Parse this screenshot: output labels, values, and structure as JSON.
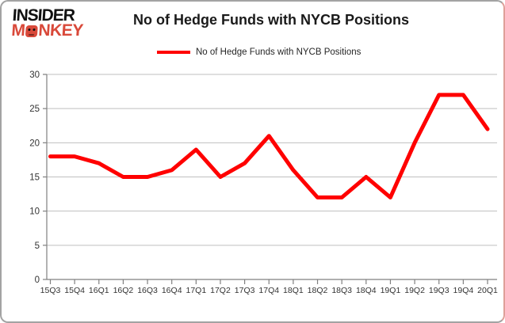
{
  "logo": {
    "line1": "INSIDER",
    "line2_pre": "M",
    "line2_post": "NKEY"
  },
  "title": "No of Hedge Funds with NYCB Positions",
  "legend": {
    "label": "No of Hedge Funds with NYCB Positions",
    "color": "#ff0000"
  },
  "chart_data": {
    "type": "line",
    "title": "No of Hedge Funds with NYCB Positions",
    "series_name": "No of Hedge Funds with NYCB Positions",
    "categories": [
      "15Q3",
      "15Q4",
      "16Q1",
      "16Q2",
      "16Q3",
      "16Q4",
      "17Q1",
      "17Q2",
      "17Q3",
      "17Q4",
      "18Q1",
      "18Q2",
      "18Q3",
      "18Q4",
      "19Q1",
      "19Q2",
      "19Q3",
      "19Q4",
      "20Q1"
    ],
    "values": [
      18,
      18,
      17,
      15,
      15,
      16,
      19,
      15,
      17,
      21,
      16,
      12,
      12,
      15,
      12,
      20,
      27,
      27,
      22
    ],
    "xlabel": "",
    "ylabel": "",
    "ylim": [
      0,
      30
    ],
    "ytick_step": 5,
    "yticks": [
      0,
      5,
      10,
      15,
      20,
      25,
      30
    ],
    "grid": true,
    "legend_position": "top",
    "colors": {
      "line": "#ff0000",
      "grid": "#bfbfbf",
      "axis": "#808080",
      "tick_label": "#333333",
      "brand_red": "#d9493a"
    }
  }
}
